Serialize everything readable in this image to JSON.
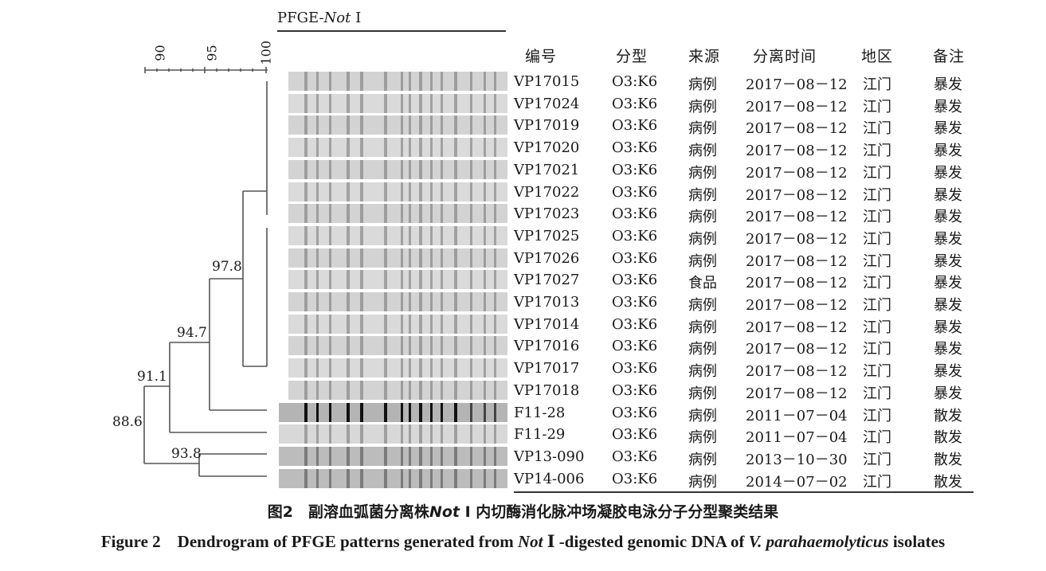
{
  "gel_title": {
    "prefix": "PFGE-",
    "enzyme": "Not",
    "suffix": " Ⅰ"
  },
  "scale": {
    "ticks": [
      "90",
      "95",
      "100"
    ]
  },
  "nodes": [
    {
      "label": "97.8"
    },
    {
      "label": "94.7"
    },
    {
      "label": "91.1"
    },
    {
      "label": "88.6"
    },
    {
      "label": "93.8"
    }
  ],
  "table": {
    "headers": [
      "编号",
      "分型",
      "来源",
      "分离时间",
      "地区",
      "备注"
    ],
    "rows": [
      [
        "VP17015",
        "O3:K6",
        "病例",
        "2017－08－12",
        "江门",
        "暴发"
      ],
      [
        "VP17024",
        "O3:K6",
        "病例",
        "2017－08－12",
        "江门",
        "暴发"
      ],
      [
        "VP17019",
        "O3:K6",
        "病例",
        "2017－08－12",
        "江门",
        "暴发"
      ],
      [
        "VP17020",
        "O3:K6",
        "病例",
        "2017－08－12",
        "江门",
        "暴发"
      ],
      [
        "VP17021",
        "O3:K6",
        "病例",
        "2017－08－12",
        "江门",
        "暴发"
      ],
      [
        "VP17022",
        "O3:K6",
        "病例",
        "2017－08－12",
        "江门",
        "暴发"
      ],
      [
        "VP17023",
        "O3:K6",
        "病例",
        "2017－08－12",
        "江门",
        "暴发"
      ],
      [
        "VP17025",
        "O3:K6",
        "病例",
        "2017－08－12",
        "江门",
        "暴发"
      ],
      [
        "VP17026",
        "O3:K6",
        "病例",
        "2017－08－12",
        "江门",
        "暴发"
      ],
      [
        "VP17027",
        "O3:K6",
        "食品",
        "2017－08－12",
        "江门",
        "暴发"
      ],
      [
        "VP17013",
        "O3:K6",
        "病例",
        "2017－08－12",
        "江门",
        "暴发"
      ],
      [
        "VP17014",
        "O3:K6",
        "病例",
        "2017－08－12",
        "江门",
        "暴发"
      ],
      [
        "VP17016",
        "O3:K6",
        "病例",
        "2017－08－12",
        "江门",
        "暴发"
      ],
      [
        "VP17017",
        "O3:K6",
        "病例",
        "2017－08－12",
        "江门",
        "暴发"
      ],
      [
        "VP17018",
        "O3:K6",
        "病例",
        "2017－08－12",
        "江门",
        "暴发"
      ],
      [
        "F11-28",
        "O3:K6",
        "病例",
        "2011－07－04",
        "江门",
        "散发"
      ],
      [
        "F11-29",
        "O3:K6",
        "病例",
        "2011－07－04",
        "江门",
        "散发"
      ],
      [
        "VP13-090",
        "O3:K6",
        "病例",
        "2013－10－30",
        "江门",
        "散发"
      ],
      [
        "VP14-006",
        "O3:K6",
        "病例",
        "2014－07－02",
        "江门",
        "散发"
      ]
    ]
  },
  "caption_cn": {
    "label": "图2",
    "pre": "副溶血弧菌分离株",
    "enzyme": "Not",
    "post": " Ⅰ 内切酶消化脉冲场凝胶电泳分子分型聚类结果"
  },
  "caption_en": {
    "label": "Figure 2",
    "pre": "Dendrogram of PFGE patterns generated from ",
    "enzyme": "Not",
    "mid": " Ⅰ -digested genomic DNA of ",
    "species": "V. parahaemolyticus",
    "post": " isolates"
  }
}
